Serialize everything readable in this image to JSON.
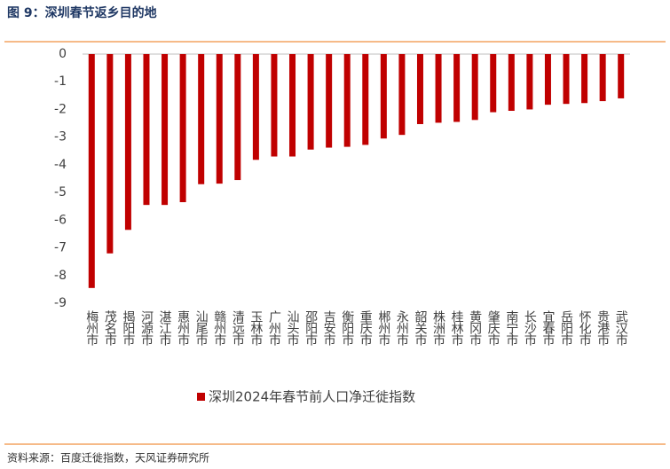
{
  "chart_data": {
    "type": "bar",
    "title": "图 9：深圳春节返乡目的地",
    "source": "资料来源：百度迁徙指数，天风证券研究所",
    "categories": [
      "梅州市",
      "茂名市",
      "揭阳市",
      "河源市",
      "湛江市",
      "惠州市",
      "汕尾市",
      "赣州市",
      "清远市",
      "玉林市",
      "广州市",
      "汕头市",
      "邵阳市",
      "吉安市",
      "衡阳市",
      "重庆市",
      "郴州市",
      "永州市",
      "韶关市",
      "株洲市",
      "桂林市",
      "黄冈市",
      "肇庆市",
      "南宁市",
      "长沙市",
      "宜春市",
      "岳阳市",
      "怀化市",
      "贵港市",
      "武汉市"
    ],
    "series": [
      {
        "name": "深圳2024年春节前人口净迁徙指数",
        "color": "#c00000",
        "values": [
          -8.45,
          -7.2,
          -6.35,
          -5.45,
          -5.45,
          -5.35,
          -4.7,
          -4.68,
          -4.55,
          -3.82,
          -3.7,
          -3.7,
          -3.45,
          -3.38,
          -3.35,
          -3.28,
          -3.05,
          -2.92,
          -2.53,
          -2.48,
          -2.45,
          -2.38,
          -2.1,
          -2.05,
          -2.0,
          -1.83,
          -1.8,
          -1.77,
          -1.7,
          -1.6
        ]
      }
    ],
    "ylim": [
      -9,
      0
    ],
    "yticks": [
      0,
      -1,
      -2,
      -3,
      -4,
      -5,
      -6,
      -7,
      -8,
      -9
    ],
    "legend": "bottom",
    "grid": false
  }
}
